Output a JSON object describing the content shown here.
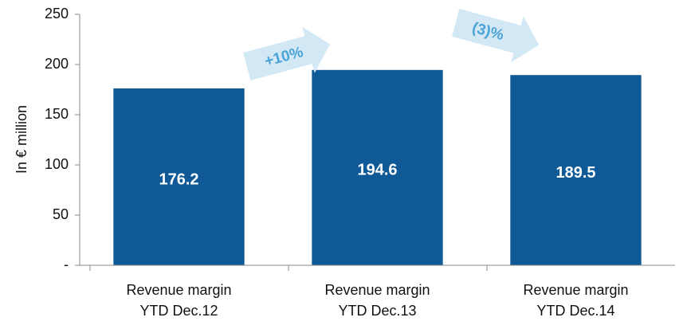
{
  "chart_data": {
    "type": "bar",
    "y_axis_label": "In € million",
    "categories": [
      "Revenue margin\nYTD Dec.12",
      "Revenue margin\nYTD Dec.13",
      "Revenue margin\nYTD Dec.14"
    ],
    "values": [
      176.2,
      194.6,
      189.5
    ],
    "color": "#0f5a96",
    "ylim": [
      0,
      250
    ],
    "yticks": [
      {
        "value": 0,
        "label": "-"
      },
      50,
      100,
      150,
      200,
      250
    ],
    "annotations": [
      "+10%",
      "(3)%"
    ]
  }
}
